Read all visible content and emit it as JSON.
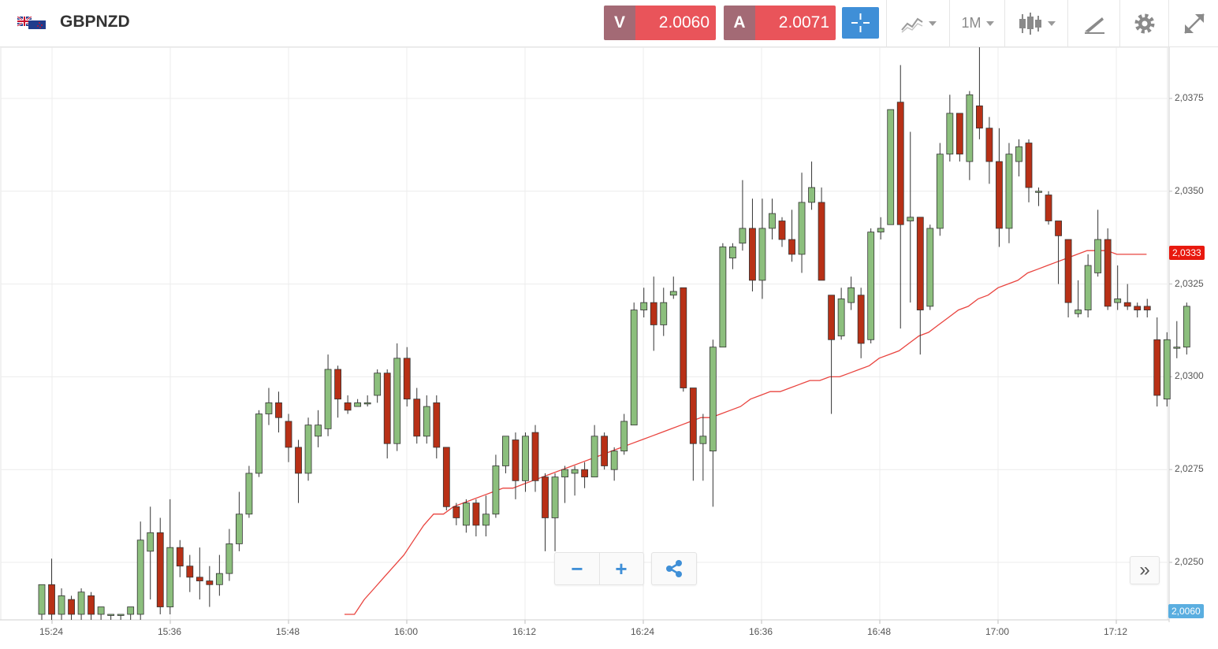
{
  "header": {
    "symbol": "GBPNZD",
    "sell_letter": "V",
    "sell_price": "2.0060",
    "buy_letter": "A",
    "buy_price": "2.0071",
    "timeframe": "1M",
    "icons": [
      "flag-icon",
      "crosshair-icon",
      "line-chart-icon",
      "candlestick-icon",
      "drawing-tools-icon",
      "gear-icon",
      "fullscreen-icon"
    ]
  },
  "controls": {
    "zoom_out": "−",
    "zoom_in": "+",
    "share_icon": "share-icon",
    "scroll_right": "»"
  },
  "chart_data": {
    "type": "candlestick",
    "ylim": [
      2.0236,
      2.0389
    ],
    "y_ticks": [
      2.0375,
      2.035,
      2.0325,
      2.03,
      2.0275,
      2.025
    ],
    "y_tick_labels": [
      "2,0375",
      "2,0350",
      "2,0325",
      "2,0300",
      "2,0275",
      "2,0250"
    ],
    "x_ticks": [
      "15:24",
      "15:36",
      "15:48",
      "16:00",
      "16:12",
      "16:24",
      "16:36",
      "16:48",
      "17:00",
      "17:12"
    ],
    "last_price_label": "2,0060",
    "ma_value_label": "2,0333",
    "colors": {
      "up": "#8cbf7d",
      "down": "#b83016",
      "wick": "#333333",
      "ma": "#e9443f",
      "grid": "#ececec",
      "price_tag": "#5aaee0",
      "ma_tag": "#e8190f"
    },
    "candles": [
      [
        2.0236,
        2.0244,
        2.024,
        2.023
      ],
      [
        2.0244,
        2.0236,
        2.0251,
        2.023
      ],
      [
        2.0236,
        2.0241,
        2.0243,
        2.023
      ],
      [
        2.024,
        2.0236,
        2.0241,
        2.023
      ],
      [
        2.0236,
        2.0242,
        2.0243,
        2.023
      ],
      [
        2.0241,
        2.0236,
        2.0242,
        2.023
      ],
      [
        2.0236,
        2.0238,
        2.0238,
        2.023
      ],
      [
        2.0236,
        2.0236,
        2.0236,
        2.023
      ],
      [
        2.0236,
        2.0236,
        2.0236,
        2.023
      ],
      [
        2.0236,
        2.0238,
        2.0238,
        2.023
      ],
      [
        2.0236,
        2.0256,
        2.0261,
        2.023
      ],
      [
        2.0253,
        2.0258,
        2.0265,
        2.024
      ],
      [
        2.0258,
        2.0238,
        2.0262,
        2.0236
      ],
      [
        2.0238,
        2.0254,
        2.0267,
        2.0236
      ],
      [
        2.0254,
        2.0249,
        2.0256,
        2.0246
      ],
      [
        2.0249,
        2.0246,
        2.0252,
        2.0242
      ],
      [
        2.0246,
        2.0245,
        2.0254,
        2.024
      ],
      [
        2.0245,
        2.0244,
        2.0249,
        2.0238
      ],
      [
        2.0244,
        2.0247,
        2.0252,
        2.0241
      ],
      [
        2.0247,
        2.0255,
        2.0259,
        2.0245
      ],
      [
        2.0255,
        2.0263,
        2.0269,
        2.0253
      ],
      [
        2.0263,
        2.0274,
        2.0276,
        2.0262
      ],
      [
        2.0274,
        2.029,
        2.0291,
        2.0273
      ],
      [
        2.029,
        2.0293,
        2.0297,
        2.0287
      ],
      [
        2.0293,
        2.0289,
        2.0296,
        2.0285
      ],
      [
        2.0288,
        2.0281,
        2.029,
        2.0277
      ],
      [
        2.0281,
        2.0274,
        2.0283,
        2.0266
      ],
      [
        2.0274,
        2.0287,
        2.0289,
        2.0272
      ],
      [
        2.0284,
        2.0287,
        2.0291,
        2.0281
      ],
      [
        2.0286,
        2.0302,
        2.0306,
        2.0284
      ],
      [
        2.0302,
        2.0294,
        2.0303,
        2.0289
      ],
      [
        2.0293,
        2.0291,
        2.0295,
        2.029
      ],
      [
        2.0292,
        2.0293,
        2.0294,
        2.0292
      ],
      [
        2.0293,
        2.0293,
        2.0295,
        2.0292
      ],
      [
        2.0295,
        2.0301,
        2.0302,
        2.0293
      ],
      [
        2.0301,
        2.0282,
        2.0302,
        2.0278
      ],
      [
        2.0282,
        2.0305,
        2.0309,
        2.028
      ],
      [
        2.0305,
        2.0294,
        2.0308,
        2.0292
      ],
      [
        2.0294,
        2.0284,
        2.0297,
        2.0282
      ],
      [
        2.0284,
        2.0292,
        2.0295,
        2.0282
      ],
      [
        2.0293,
        2.0281,
        2.0295,
        2.0278
      ],
      [
        2.0281,
        2.0265,
        2.0281,
        2.0264
      ],
      [
        2.0265,
        2.0262,
        2.0266,
        2.026
      ],
      [
        2.026,
        2.0266,
        2.0267,
        2.0258
      ],
      [
        2.0266,
        2.026,
        2.0267,
        2.0257
      ],
      [
        2.026,
        2.0263,
        2.0268,
        2.0257
      ],
      [
        2.0263,
        2.0276,
        2.0279,
        2.0262
      ],
      [
        2.0276,
        2.0284,
        2.0284,
        2.0274
      ],
      [
        2.0283,
        2.0272,
        2.0285,
        2.0267
      ],
      [
        2.0272,
        2.0284,
        2.0285,
        2.0269
      ],
      [
        2.0285,
        2.0272,
        2.0287,
        2.0269
      ],
      [
        2.0273,
        2.0262,
        2.0274,
        2.0253
      ],
      [
        2.0262,
        2.0273,
        2.0274,
        2.0253
      ],
      [
        2.0273,
        2.0275,
        2.0276,
        2.0266
      ],
      [
        2.0274,
        2.0275,
        2.0276,
        2.0268
      ],
      [
        2.0275,
        2.0273,
        2.0277,
        2.027
      ],
      [
        2.0273,
        2.0284,
        2.0287,
        2.0273
      ],
      [
        2.0284,
        2.0276,
        2.0285,
        2.0275
      ],
      [
        2.0275,
        2.028,
        2.0281,
        2.0272
      ],
      [
        2.028,
        2.0288,
        2.029,
        2.0279
      ],
      [
        2.0287,
        2.0318,
        2.032,
        2.0287
      ],
      [
        2.0318,
        2.032,
        2.0324,
        2.0316
      ],
      [
        2.032,
        2.0314,
        2.0327,
        2.0307
      ],
      [
        2.0314,
        2.032,
        2.0324,
        2.0311
      ],
      [
        2.0322,
        2.0323,
        2.0327,
        2.0321
      ],
      [
        2.0324,
        2.0297,
        2.0324,
        2.0296
      ],
      [
        2.0297,
        2.0282,
        2.0297,
        2.0272
      ],
      [
        2.0282,
        2.0284,
        2.029,
        2.0272
      ],
      [
        2.028,
        2.0308,
        2.031,
        2.0265
      ],
      [
        2.0308,
        2.0335,
        2.0336,
        2.0308
      ],
      [
        2.0332,
        2.0335,
        2.0336,
        2.0329
      ],
      [
        2.0336,
        2.034,
        2.0353,
        2.0334
      ],
      [
        2.034,
        2.0326,
        2.0348,
        2.0323
      ],
      [
        2.0326,
        2.034,
        2.0348,
        2.0321
      ],
      [
        2.034,
        2.0344,
        2.0348,
        2.0337
      ],
      [
        2.0342,
        2.0337,
        2.0343,
        2.0335
      ],
      [
        2.0337,
        2.0333,
        2.0345,
        2.0331
      ],
      [
        2.0333,
        2.0347,
        2.0355,
        2.0328
      ],
      [
        2.0347,
        2.0351,
        2.0358,
        2.0345
      ],
      [
        2.0347,
        2.0326,
        2.0351,
        2.0326
      ],
      [
        2.0322,
        2.031,
        2.0322,
        2.029
      ],
      [
        2.0311,
        2.0321,
        2.0324,
        2.031
      ],
      [
        2.032,
        2.0324,
        2.0327,
        2.0318
      ],
      [
        2.0322,
        2.0309,
        2.0324,
        2.0305
      ],
      [
        2.031,
        2.0339,
        2.034,
        2.0309
      ],
      [
        2.0339,
        2.034,
        2.0343,
        2.0337
      ],
      [
        2.0341,
        2.0372,
        2.0372,
        2.0341
      ],
      [
        2.0374,
        2.0341,
        2.0384,
        2.0313
      ],
      [
        2.0342,
        2.0343,
        2.0366,
        2.032
      ],
      [
        2.0343,
        2.0318,
        2.0343,
        2.0306
      ],
      [
        2.0319,
        2.034,
        2.0341,
        2.0318
      ],
      [
        2.034,
        2.036,
        2.0363,
        2.0338
      ],
      [
        2.036,
        2.0371,
        2.0376,
        2.0358
      ],
      [
        2.0371,
        2.036,
        2.0371,
        2.0358
      ],
      [
        2.0358,
        2.0376,
        2.0377,
        2.0353
      ],
      [
        2.0373,
        2.0367,
        2.0389,
        2.0364
      ],
      [
        2.0367,
        2.0358,
        2.037,
        2.0352
      ],
      [
        2.0358,
        2.034,
        2.0367,
        2.0335
      ],
      [
        2.034,
        2.036,
        2.0363,
        2.0336
      ],
      [
        2.0358,
        2.0362,
        2.0364,
        2.0354
      ],
      [
        2.0363,
        2.0351,
        2.0364,
        2.0347
      ],
      [
        2.035,
        2.035,
        2.0351,
        2.0346
      ],
      [
        2.0349,
        2.0342,
        2.035,
        2.0341
      ],
      [
        2.0342,
        2.0338,
        2.0342,
        2.0325
      ],
      [
        2.0337,
        2.032,
        2.0337,
        2.0316
      ],
      [
        2.0317,
        2.0318,
        2.0326,
        2.0316
      ],
      [
        2.0318,
        2.033,
        2.0333,
        2.0316
      ],
      [
        2.0328,
        2.0337,
        2.0345,
        2.0327
      ],
      [
        2.0337,
        2.0319,
        2.034,
        2.0318
      ],
      [
        2.032,
        2.0321,
        2.033,
        2.0318
      ],
      [
        2.032,
        2.0319,
        2.0325,
        2.0318
      ],
      [
        2.0319,
        2.0318,
        2.032,
        2.0316
      ],
      [
        2.0319,
        2.0318,
        2.0321,
        2.0316
      ],
      [
        2.031,
        2.0295,
        2.0316,
        2.0292
      ],
      [
        2.0294,
        2.031,
        2.0312,
        2.0292
      ],
      [
        2.0308,
        2.0308,
        2.0315,
        2.0305
      ],
      [
        2.0308,
        2.0319,
        2.032,
        2.0306
      ]
    ],
    "ma": [
      [
        2.0236,
        2.0236
      ],
      [
        2.024,
        2.0243
      ],
      [
        2.0246,
        2.0249
      ],
      [
        2.0252,
        2.0256
      ],
      [
        2.026,
        2.0263
      ],
      [
        2.0263,
        2.0265
      ],
      [
        2.0266,
        2.0267
      ],
      [
        2.0268,
        2.0269
      ],
      [
        2.027,
        2.027
      ],
      [
        2.0271,
        2.0272
      ],
      [
        2.0273,
        2.0274
      ],
      [
        2.0275,
        2.0276
      ],
      [
        2.0277,
        2.0278
      ],
      [
        2.0279,
        2.028
      ],
      [
        2.0281,
        2.0282
      ],
      [
        2.0283,
        2.0284
      ],
      [
        2.0285,
        2.0286
      ],
      [
        2.0287,
        2.0288
      ],
      [
        2.0289,
        2.0289
      ],
      [
        2.029,
        2.0291
      ],
      [
        2.0292,
        2.0294
      ],
      [
        2.0295,
        2.0296
      ],
      [
        2.0296,
        2.0297
      ],
      [
        2.0298,
        2.0299
      ],
      [
        2.0299,
        2.03
      ],
      [
        2.03,
        2.0301
      ],
      [
        2.0302,
        2.0303
      ],
      [
        2.0305,
        2.0306
      ],
      [
        2.0307,
        2.0309
      ],
      [
        2.0311,
        2.0312
      ],
      [
        2.0314,
        2.0316
      ],
      [
        2.0318,
        2.0319
      ],
      [
        2.0321,
        2.0322
      ],
      [
        2.0324,
        2.0325
      ],
      [
        2.0326,
        2.0328
      ],
      [
        2.0329,
        2.033
      ],
      [
        2.0331,
        2.0332
      ],
      [
        2.0333,
        2.0334
      ],
      [
        2.0334,
        2.0334
      ],
      [
        2.0333,
        2.0333
      ],
      [
        2.0333,
        2.0333
      ]
    ]
  }
}
